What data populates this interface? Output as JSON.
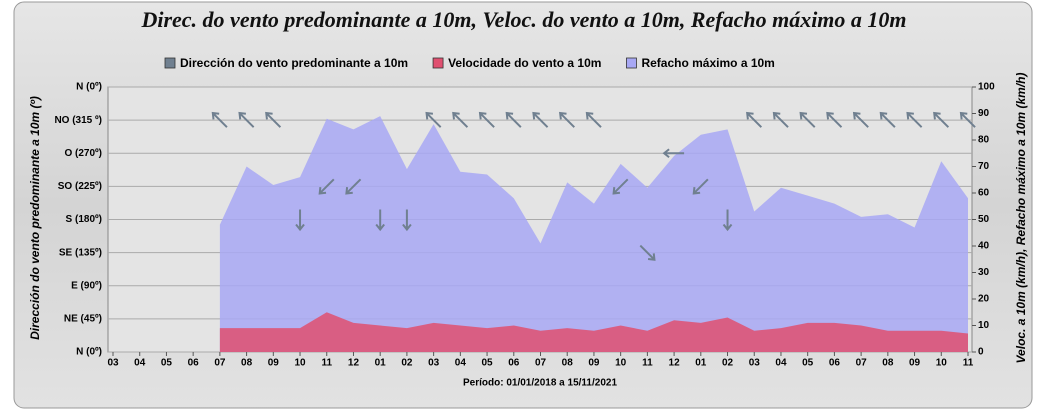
{
  "chart_data": {
    "type": "area",
    "title": "Direc. do vento predominante a 10m, Veloc. do vento a 10m, Refacho máximo a 10m",
    "xlabel": "Período: 01/01/2018 a 15/11/2021",
    "ylabel": "Dirección do vento predominante a 10m (º)",
    "y2label": "Veloc. a 10m (km/h), Refacho máximo a 10m (km/h)",
    "categories": [
      "03",
      "04",
      "05",
      "06",
      "07",
      "08",
      "09",
      "10",
      "11",
      "12",
      "01",
      "02",
      "03",
      "04",
      "05",
      "06",
      "07",
      "08",
      "09",
      "10",
      "11",
      "12",
      "01",
      "02",
      "03",
      "04",
      "05",
      "06",
      "07",
      "08",
      "09",
      "10",
      "11"
    ],
    "ylim": [
      0,
      360
    ],
    "yticks": [
      {
        "value": 0,
        "label": "N (0º)"
      },
      {
        "value": 45,
        "label": "NE (45º)"
      },
      {
        "value": 90,
        "label": "E (90º)"
      },
      {
        "value": 135,
        "label": "SE (135º)"
      },
      {
        "value": 180,
        "label": "S (180º)"
      },
      {
        "value": 225,
        "label": "SO (225º)"
      },
      {
        "value": 270,
        "label": "O (270º)"
      },
      {
        "value": 315,
        "label": "NO (315 º)"
      },
      {
        "value": 360,
        "label": "N (0º)"
      }
    ],
    "y2lim": [
      0,
      100
    ],
    "y2ticks": [
      0,
      10,
      20,
      30,
      40,
      50,
      60,
      70,
      80,
      90,
      100
    ],
    "grid": true,
    "legend": "top",
    "series": [
      {
        "name": "Dirección do vento predominante a 10m",
        "color": "#708090",
        "type": "arrow",
        "axis": "y",
        "values": [
          null,
          null,
          null,
          null,
          315,
          315,
          315,
          180,
          225,
          225,
          180,
          180,
          315,
          315,
          315,
          315,
          315,
          315,
          315,
          225,
          135,
          270,
          225,
          180,
          315,
          315,
          315,
          315,
          315,
          315,
          315,
          315,
          315
        ]
      },
      {
        "name": "Velocidade do vento a 10m",
        "color": "#e05070",
        "type": "area",
        "axis": "y2",
        "values": [
          null,
          null,
          null,
          null,
          9,
          9,
          9,
          9,
          15,
          11,
          10,
          9,
          11,
          10,
          9,
          10,
          8,
          9,
          8,
          10,
          8,
          12,
          11,
          13,
          8,
          9,
          11,
          11,
          10,
          8,
          8,
          8,
          7
        ]
      },
      {
        "name": "Refacho máximo a 10m",
        "color": "#a8a8f4",
        "type": "area",
        "axis": "y2",
        "values": [
          null,
          null,
          null,
          null,
          48,
          70,
          63,
          66,
          88,
          84,
          89,
          69,
          86,
          68,
          67,
          58,
          41,
          64,
          56,
          71,
          62,
          74,
          82,
          84,
          53,
          62,
          59,
          56,
          51,
          52,
          47,
          72,
          58
        ]
      }
    ]
  }
}
